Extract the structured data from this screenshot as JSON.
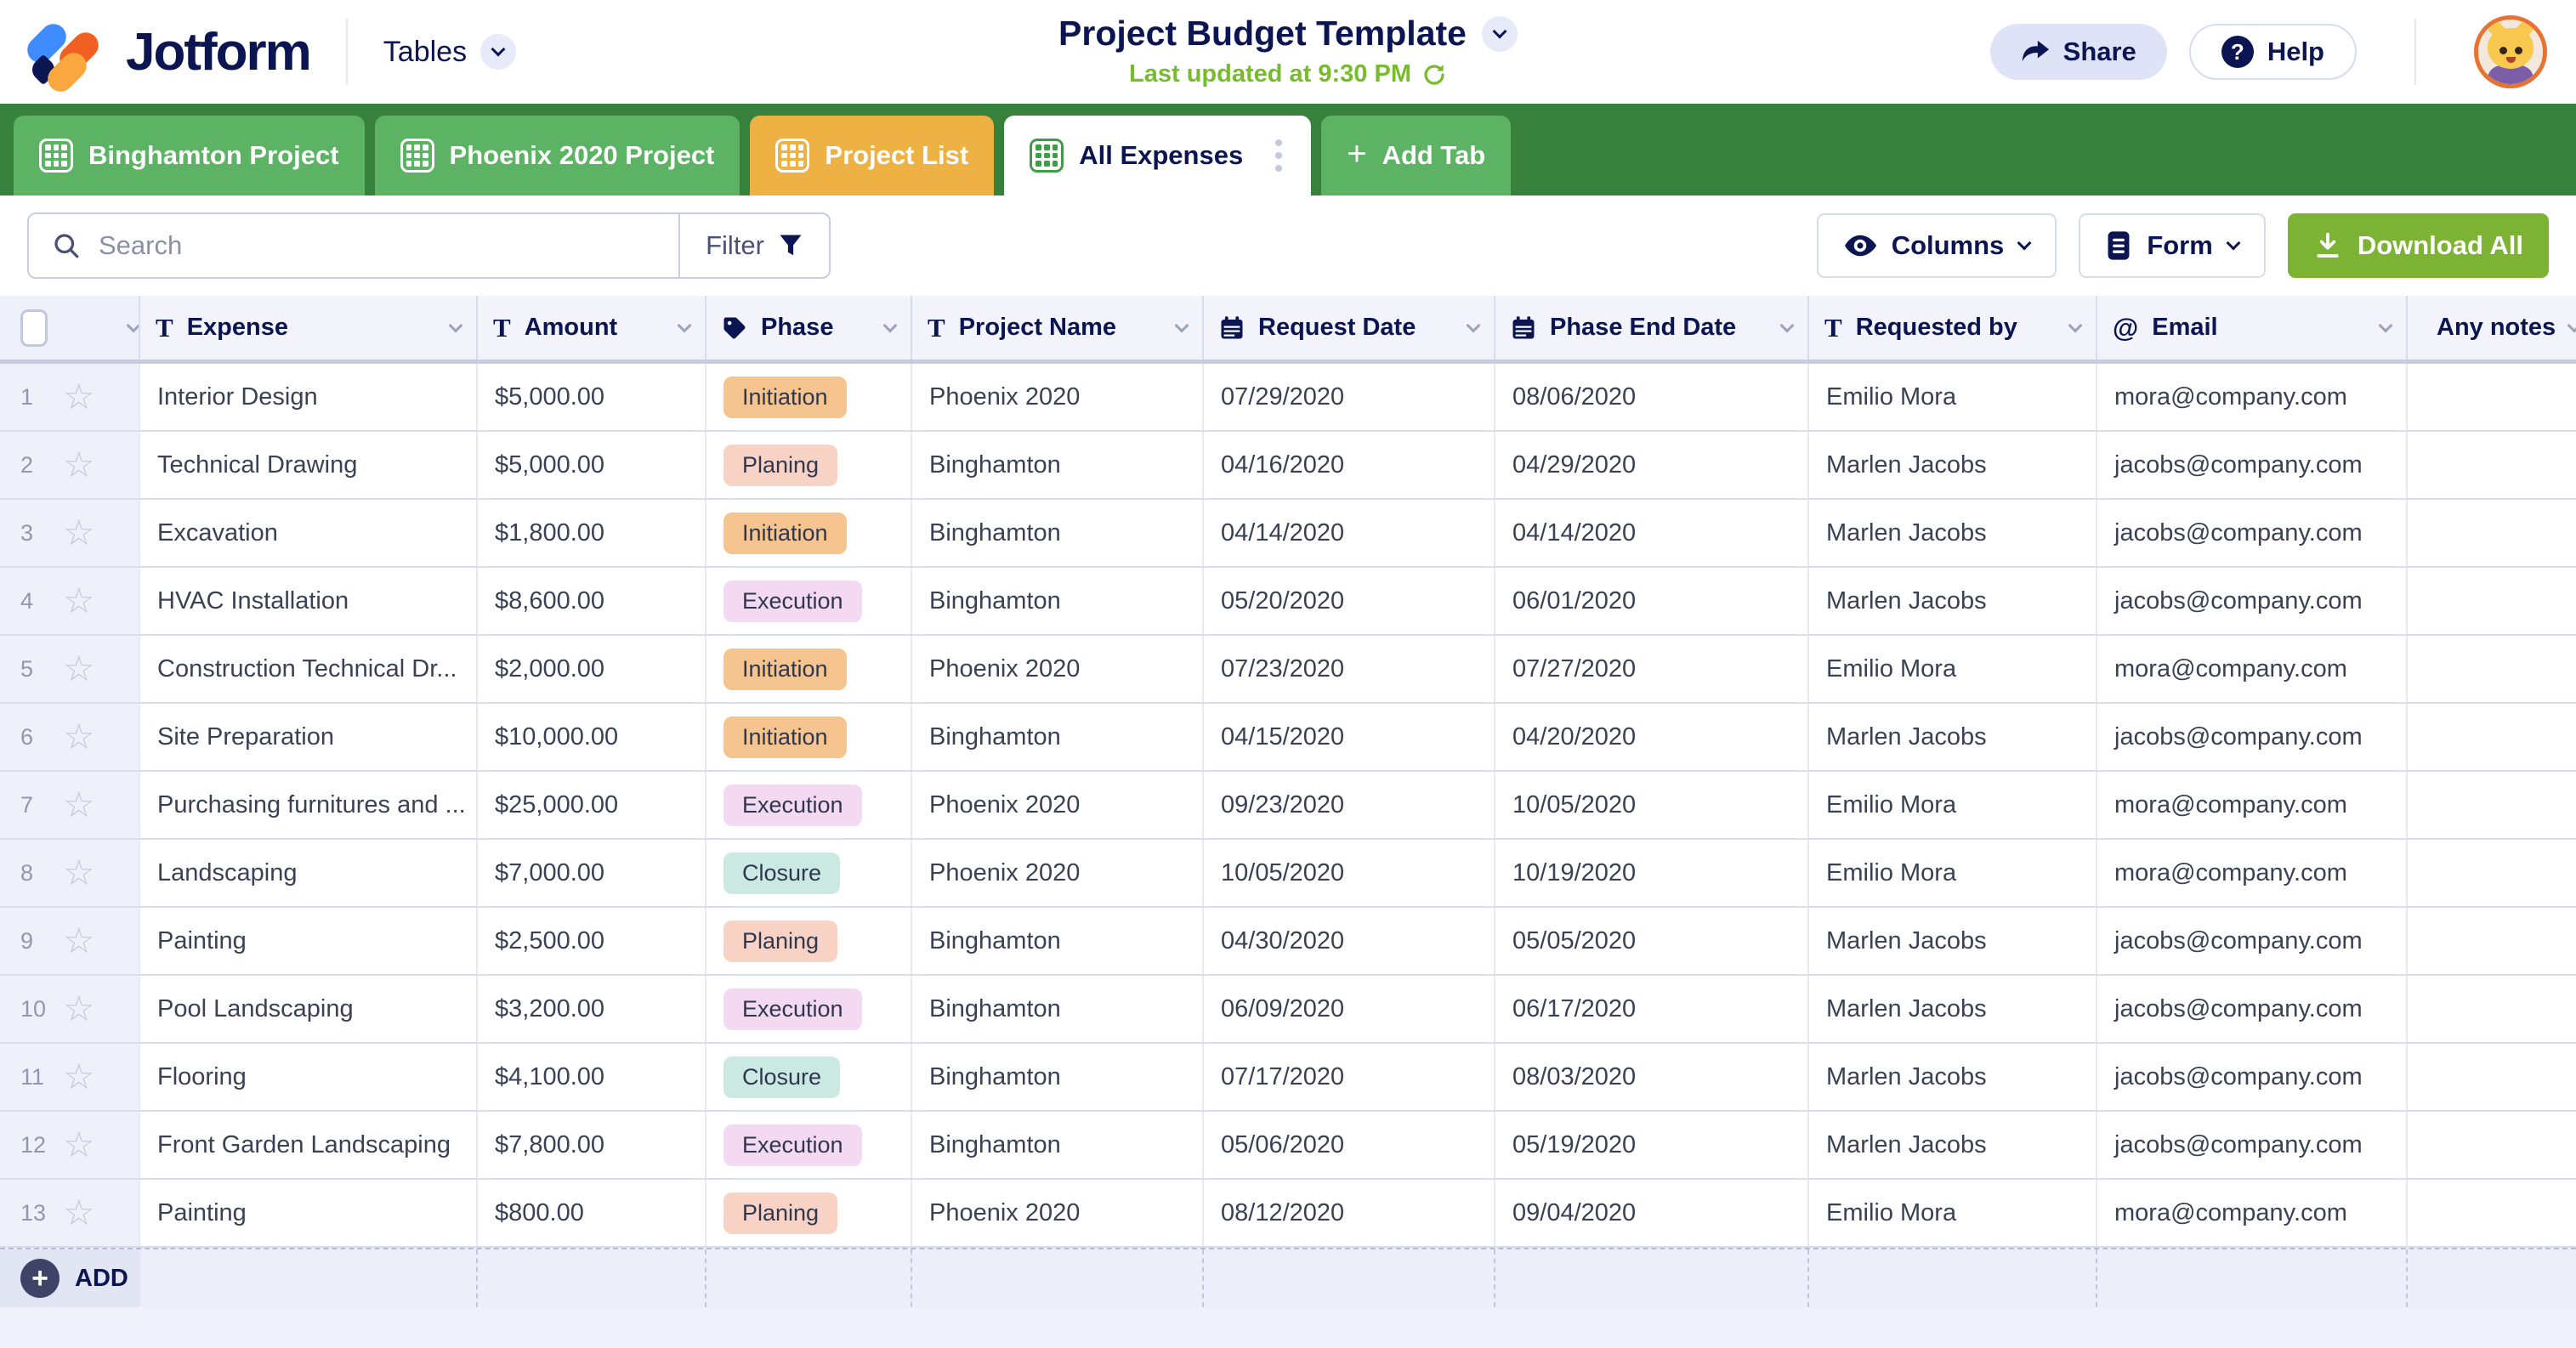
{
  "header": {
    "logo_text": "Jotform",
    "nav_label": "Tables",
    "title": "Project Budget Template",
    "last_updated": "Last updated at 9:30 PM",
    "share_label": "Share",
    "help_label": "Help",
    "help_qmark": "?"
  },
  "tabs": [
    {
      "label": "Binghamton Project",
      "type": "green"
    },
    {
      "label": "Phoenix 2020 Project",
      "type": "green"
    },
    {
      "label": "Project List",
      "type": "orange"
    },
    {
      "label": "All Expenses",
      "type": "active",
      "has_menu": true
    },
    {
      "label": "Add Tab",
      "type": "add"
    }
  ],
  "toolbar": {
    "search_placeholder": "Search",
    "filter_label": "Filter",
    "columns_label": "Columns",
    "form_label": "Form",
    "download_label": "Download All"
  },
  "table": {
    "columns": [
      {
        "label": "Expense",
        "icon": "text-icon"
      },
      {
        "label": "Amount",
        "icon": "text-icon"
      },
      {
        "label": "Phase",
        "icon": "tag-icon"
      },
      {
        "label": "Project Name",
        "icon": "text-icon"
      },
      {
        "label": "Request Date",
        "icon": "calendar-icon"
      },
      {
        "label": "Phase End Date",
        "icon": "calendar-icon"
      },
      {
        "label": "Requested by",
        "icon": "text-icon"
      },
      {
        "label": "Email",
        "icon": "at-icon"
      },
      {
        "label": "Any notes",
        "icon": "longtext-icon"
      }
    ],
    "phase_colors": {
      "Initiation": "#F5C48F",
      "Planing": "#F8D3C5",
      "Execution": "#F3D9F1",
      "Closure": "#C9E9E2"
    },
    "rows": [
      {
        "num": 1,
        "expense": "Interior Design",
        "amount": "$5,000.00",
        "phase": "Initiation",
        "project": "Phoenix 2020",
        "request_date": "07/29/2020",
        "phase_end": "08/06/2020",
        "requested_by": "Emilio Mora",
        "email": "mora@company.com",
        "notes": ""
      },
      {
        "num": 2,
        "expense": "Technical Drawing",
        "amount": "$5,000.00",
        "phase": "Planing",
        "project": "Binghamton",
        "request_date": "04/16/2020",
        "phase_end": "04/29/2020",
        "requested_by": "Marlen Jacobs",
        "email": "jacobs@company.com",
        "notes": ""
      },
      {
        "num": 3,
        "expense": "Excavation",
        "amount": "$1,800.00",
        "phase": "Initiation",
        "project": "Binghamton",
        "request_date": "04/14/2020",
        "phase_end": "04/14/2020",
        "requested_by": "Marlen Jacobs",
        "email": "jacobs@company.com",
        "notes": ""
      },
      {
        "num": 4,
        "expense": "HVAC Installation",
        "amount": "$8,600.00",
        "phase": "Execution",
        "project": "Binghamton",
        "request_date": "05/20/2020",
        "phase_end": "06/01/2020",
        "requested_by": "Marlen Jacobs",
        "email": "jacobs@company.com",
        "notes": ""
      },
      {
        "num": 5,
        "expense": "Construction Technical Dr...",
        "amount": "$2,000.00",
        "phase": "Initiation",
        "project": "Phoenix 2020",
        "request_date": "07/23/2020",
        "phase_end": "07/27/2020",
        "requested_by": "Emilio Mora",
        "email": "mora@company.com",
        "notes": ""
      },
      {
        "num": 6,
        "expense": "Site Preparation",
        "amount": "$10,000.00",
        "phase": "Initiation",
        "project": "Binghamton",
        "request_date": "04/15/2020",
        "phase_end": "04/20/2020",
        "requested_by": "Marlen Jacobs",
        "email": "jacobs@company.com",
        "notes": ""
      },
      {
        "num": 7,
        "expense": "Purchasing furnitures and ...",
        "amount": "$25,000.00",
        "phase": "Execution",
        "project": "Phoenix 2020",
        "request_date": "09/23/2020",
        "phase_end": "10/05/2020",
        "requested_by": "Emilio Mora",
        "email": "mora@company.com",
        "notes": ""
      },
      {
        "num": 8,
        "expense": "Landscaping",
        "amount": "$7,000.00",
        "phase": "Closure",
        "project": "Phoenix 2020",
        "request_date": "10/05/2020",
        "phase_end": "10/19/2020",
        "requested_by": "Emilio Mora",
        "email": "mora@company.com",
        "notes": ""
      },
      {
        "num": 9,
        "expense": "Painting",
        "amount": "$2,500.00",
        "phase": "Planing",
        "project": "Binghamton",
        "request_date": "04/30/2020",
        "phase_end": "05/05/2020",
        "requested_by": "Marlen Jacobs",
        "email": "jacobs@company.com",
        "notes": ""
      },
      {
        "num": 10,
        "expense": "Pool Landscaping",
        "amount": "$3,200.00",
        "phase": "Execution",
        "project": "Binghamton",
        "request_date": "06/09/2020",
        "phase_end": "06/17/2020",
        "requested_by": "Marlen Jacobs",
        "email": "jacobs@company.com",
        "notes": ""
      },
      {
        "num": 11,
        "expense": "Flooring",
        "amount": "$4,100.00",
        "phase": "Closure",
        "project": "Binghamton",
        "request_date": "07/17/2020",
        "phase_end": "08/03/2020",
        "requested_by": "Marlen Jacobs",
        "email": "jacobs@company.com",
        "notes": ""
      },
      {
        "num": 12,
        "expense": "Front Garden Landscaping",
        "amount": "$7,800.00",
        "phase": "Execution",
        "project": "Binghamton",
        "request_date": "05/06/2020",
        "phase_end": "05/19/2020",
        "requested_by": "Marlen Jacobs",
        "email": "jacobs@company.com",
        "notes": ""
      },
      {
        "num": 13,
        "expense": "Painting",
        "amount": "$800.00",
        "phase": "Planing",
        "project": "Phoenix 2020",
        "request_date": "08/12/2020",
        "phase_end": "09/04/2020",
        "requested_by": "Emilio Mora",
        "email": "mora@company.com",
        "notes": ""
      }
    ],
    "add_label": "ADD"
  },
  "colors": {
    "navy": "#0A1551",
    "text": "#3A4154",
    "green_strip": "#37813D",
    "tab_green": "#5BB363",
    "tab_orange": "#EDB243",
    "button_green": "#7CB334",
    "updated_green": "#76BC2D",
    "lavender": "#DFE3F7",
    "header_bg": "#F2F3FB",
    "page_bg": "#EFF1FB",
    "rowhead_bg": "#EEF0FA",
    "border": "#D9DCEA",
    "avatar_ring": "#E87231",
    "add_circle": "#3E4467"
  }
}
